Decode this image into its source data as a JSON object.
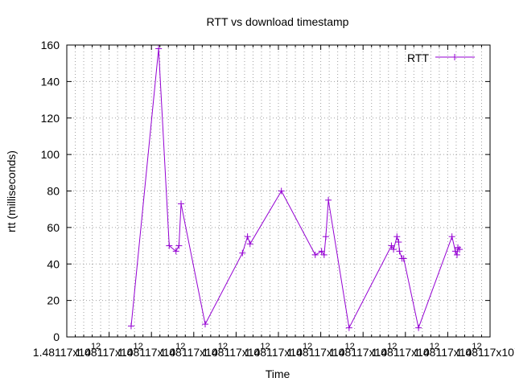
{
  "chart_data": {
    "type": "line",
    "title": "RTT vs download timestamp",
    "xlabel": "Time",
    "ylabel": "rtt (milliseconds)",
    "xlim": [
      0,
      10
    ],
    "ylim": [
      0,
      160
    ],
    "y_ticks": [
      0,
      20,
      40,
      60,
      80,
      100,
      120,
      140,
      160
    ],
    "x_tick_values": [
      0,
      1,
      2,
      3,
      4,
      5,
      6,
      7,
      8,
      9,
      10
    ],
    "x_tick_labels": [
      "1.48117x10^12",
      "1.48117x10^12",
      "1.48117x10^12",
      "1.48117x10^12",
      "1.48117x10^12",
      "1.48117x10^12",
      "1.48117x10^12",
      "1.48117x10^12",
      "1.48117x10^12",
      "1.48117x10^12",
      "1.48117x10^12"
    ],
    "x_minor_per_major": 5,
    "grid": true,
    "legend_position": "top-right",
    "series": [
      {
        "name": "RTT",
        "color": "#9400d3",
        "points": [
          [
            1.52,
            6
          ],
          [
            2.17,
            158
          ],
          [
            2.42,
            50
          ],
          [
            2.58,
            47
          ],
          [
            2.65,
            50
          ],
          [
            2.7,
            73
          ],
          [
            3.27,
            7
          ],
          [
            4.15,
            46
          ],
          [
            4.27,
            55
          ],
          [
            4.33,
            51
          ],
          [
            5.07,
            80
          ],
          [
            5.87,
            45
          ],
          [
            6.02,
            47
          ],
          [
            6.08,
            45
          ],
          [
            6.12,
            55
          ],
          [
            6.18,
            75
          ],
          [
            6.67,
            5
          ],
          [
            7.67,
            50
          ],
          [
            7.72,
            48
          ],
          [
            7.8,
            55
          ],
          [
            7.84,
            52
          ],
          [
            7.86,
            47
          ],
          [
            7.92,
            43
          ],
          [
            7.96,
            43
          ],
          [
            8.31,
            5
          ],
          [
            9.1,
            55
          ],
          [
            9.18,
            47
          ],
          [
            9.22,
            45
          ],
          [
            9.24,
            49
          ],
          [
            9.28,
            48
          ]
        ]
      }
    ]
  }
}
